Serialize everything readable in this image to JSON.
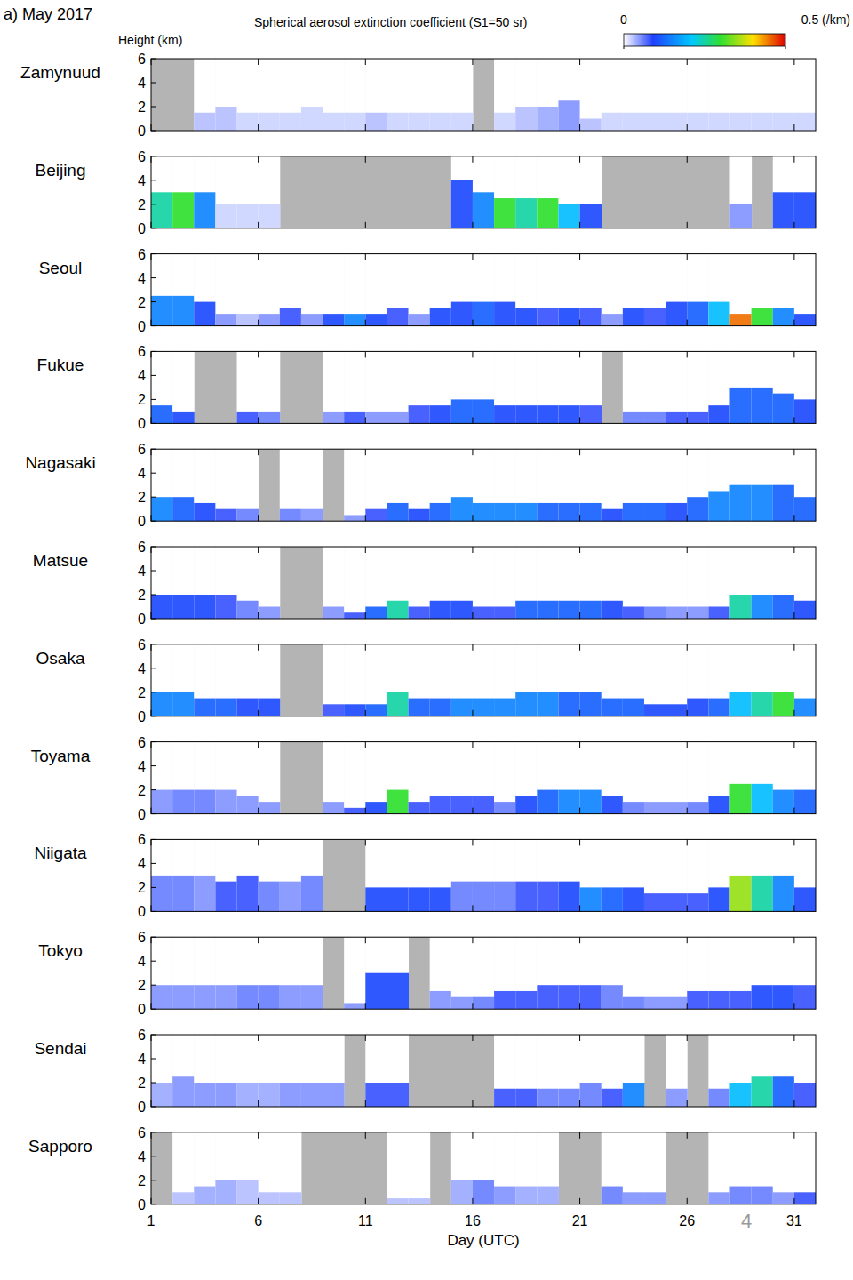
{
  "chart_data": {
    "type": "heatmap",
    "title": "a) May 2017",
    "colorbar": {
      "label": "Spherical aerosol extinction coefficient (S1=50 sr)",
      "range": [
        0,
        0.5
      ],
      "ticks": [
        0,
        {
          "value": 0.5,
          "label": "0.5 (/km)"
        }
      ]
    },
    "xlabel": "Day (UTC)",
    "ylabel": "Height (km)",
    "page_number": "4",
    "xlim": [
      1,
      32
    ],
    "xticks": [
      1,
      6,
      11,
      16,
      21,
      26,
      31
    ],
    "ylim": [
      0,
      6
    ],
    "yticks": [
      0,
      2,
      4,
      6
    ],
    "x": [
      1,
      2,
      3,
      4,
      5,
      6,
      7,
      8,
      9,
      10,
      11,
      12,
      13,
      14,
      15,
      16,
      17,
      18,
      19,
      20,
      21,
      22,
      23,
      24,
      25,
      26,
      27,
      28,
      29,
      30,
      31
    ],
    "panels": [
      {
        "name": "Zamynuud",
        "layer_top": [
          null,
          null,
          1.5,
          2,
          1.5,
          1.5,
          1.5,
          2,
          1.5,
          1.5,
          1.5,
          1.5,
          1.5,
          1.5,
          1.5,
          null,
          1.5,
          2,
          2,
          2.5,
          1,
          1.5,
          1.5,
          1.5,
          1.5,
          1.5,
          1.5,
          1.5,
          1.5,
          1.5,
          1.5
        ],
        "extinction": [
          null,
          null,
          0.03,
          0.03,
          0.02,
          0.02,
          0.02,
          0.02,
          0.02,
          0.02,
          0.03,
          0.02,
          0.02,
          0.02,
          0.02,
          null,
          0.02,
          0.03,
          0.04,
          0.05,
          0.03,
          0.02,
          0.02,
          0.02,
          0.02,
          0.02,
          0.02,
          0.02,
          0.02,
          0.02,
          0.02
        ]
      },
      {
        "name": "Beijing",
        "layer_top": [
          3,
          3,
          3,
          2,
          2,
          2,
          null,
          null,
          null,
          null,
          null,
          null,
          null,
          null,
          4,
          3,
          2.5,
          2.5,
          2.5,
          2,
          2,
          null,
          null,
          null,
          null,
          null,
          null,
          2,
          null,
          3,
          3
        ],
        "extinction": [
          0.25,
          0.3,
          0.15,
          0.02,
          0.02,
          0.02,
          null,
          null,
          null,
          null,
          null,
          null,
          null,
          null,
          0.1,
          0.15,
          0.3,
          0.25,
          0.3,
          0.2,
          0.1,
          null,
          null,
          null,
          null,
          null,
          null,
          0.05,
          null,
          0.1,
          0.1
        ]
      },
      {
        "name": "Seoul",
        "layer_top": [
          2.5,
          2.5,
          2,
          1,
          1,
          1,
          1.5,
          1,
          1,
          1,
          1,
          1.5,
          1,
          1.5,
          2,
          2,
          2,
          1.5,
          1.5,
          1.5,
          1.5,
          1,
          1.5,
          1.5,
          2,
          2,
          2,
          1,
          1.5,
          1.5,
          1
        ],
        "extinction": [
          0.15,
          0.15,
          0.1,
          0.05,
          0.03,
          0.05,
          0.08,
          0.05,
          0.1,
          0.15,
          0.1,
          0.08,
          0.05,
          0.1,
          0.1,
          0.12,
          0.1,
          0.1,
          0.08,
          0.1,
          0.08,
          0.05,
          0.1,
          0.08,
          0.1,
          0.12,
          0.2,
          0.45,
          0.3,
          0.15,
          0.1
        ]
      },
      {
        "name": "Fukue",
        "layer_top": [
          1.5,
          1,
          null,
          null,
          1,
          1,
          null,
          null,
          1,
          1,
          1,
          1,
          1.5,
          1.5,
          2,
          2,
          1.5,
          1.5,
          1.5,
          1.5,
          1.5,
          null,
          1,
          1,
          1,
          1,
          1.5,
          3,
          3,
          2.5,
          2
        ],
        "extinction": [
          0.12,
          0.1,
          null,
          null,
          0.08,
          0.06,
          null,
          null,
          0.05,
          0.08,
          0.05,
          0.05,
          0.08,
          0.1,
          0.12,
          0.12,
          0.1,
          0.1,
          0.1,
          0.1,
          0.08,
          null,
          0.06,
          0.06,
          0.08,
          0.08,
          0.1,
          0.12,
          0.12,
          0.12,
          0.1
        ]
      },
      {
        "name": "Nagasaki",
        "layer_top": [
          2,
          2,
          1.5,
          1,
          1,
          null,
          1,
          1,
          null,
          0.5,
          1,
          1.5,
          1,
          1.5,
          2,
          1.5,
          1.5,
          1.5,
          1.5,
          1.5,
          1.5,
          1,
          1.5,
          1.5,
          1.5,
          2,
          2.5,
          3,
          3,
          3,
          2
        ],
        "extinction": [
          0.15,
          0.12,
          0.1,
          0.08,
          0.06,
          null,
          0.06,
          0.05,
          null,
          0.05,
          0.08,
          0.12,
          0.1,
          0.12,
          0.15,
          0.15,
          0.15,
          0.15,
          0.12,
          0.12,
          0.12,
          0.1,
          0.12,
          0.12,
          0.1,
          0.12,
          0.15,
          0.15,
          0.15,
          0.12,
          0.12
        ]
      },
      {
        "name": "Matsue",
        "layer_top": [
          2,
          2,
          2,
          2,
          1.5,
          1,
          null,
          null,
          1,
          0.5,
          1,
          1.5,
          1,
          1.5,
          1.5,
          1,
          1,
          1.5,
          1.5,
          1.5,
          1.5,
          1.5,
          1,
          1,
          1,
          1,
          1,
          2,
          2,
          2,
          1.5
        ],
        "extinction": [
          0.1,
          0.1,
          0.1,
          0.08,
          0.06,
          0.05,
          null,
          null,
          0.05,
          0.08,
          0.12,
          0.25,
          0.08,
          0.1,
          0.1,
          0.08,
          0.08,
          0.12,
          0.12,
          0.12,
          0.12,
          0.1,
          0.08,
          0.06,
          0.05,
          0.05,
          0.08,
          0.25,
          0.15,
          0.12,
          0.1
        ]
      },
      {
        "name": "Osaka",
        "layer_top": [
          2,
          2,
          1.5,
          1.5,
          1.5,
          1.5,
          null,
          null,
          1,
          1,
          1,
          2,
          1.5,
          1.5,
          1.5,
          1.5,
          1.5,
          2,
          2,
          2,
          2,
          1.5,
          1.5,
          1,
          1,
          1.5,
          1.5,
          2,
          2,
          2,
          1.5
        ],
        "extinction": [
          0.15,
          0.15,
          0.12,
          0.12,
          0.1,
          0.1,
          null,
          null,
          0.08,
          0.1,
          0.12,
          0.25,
          0.12,
          0.12,
          0.15,
          0.15,
          0.15,
          0.15,
          0.15,
          0.12,
          0.12,
          0.12,
          0.12,
          0.1,
          0.1,
          0.1,
          0.12,
          0.2,
          0.25,
          0.3,
          0.15
        ]
      },
      {
        "name": "Toyama",
        "layer_top": [
          2,
          2,
          2,
          2,
          1.5,
          1,
          null,
          null,
          1,
          0.5,
          1,
          2,
          1,
          1.5,
          1.5,
          1.5,
          1,
          1.5,
          2,
          2,
          2,
          1.5,
          1,
          1,
          1,
          1,
          1.5,
          2.5,
          2.5,
          2,
          2
        ],
        "extinction": [
          0.05,
          0.06,
          0.06,
          0.05,
          0.05,
          0.05,
          null,
          null,
          0.05,
          0.08,
          0.1,
          0.3,
          0.08,
          0.08,
          0.08,
          0.08,
          0.06,
          0.1,
          0.12,
          0.15,
          0.15,
          0.1,
          0.06,
          0.05,
          0.05,
          0.06,
          0.1,
          0.3,
          0.2,
          0.15,
          0.12
        ]
      },
      {
        "name": "Niigata",
        "layer_top": [
          3,
          3,
          3,
          2.5,
          3,
          2.5,
          2.5,
          3,
          null,
          null,
          2,
          2,
          2,
          2,
          2.5,
          2.5,
          2.5,
          2.5,
          2.5,
          2.5,
          2,
          2,
          2,
          1.5,
          1.5,
          1.5,
          2,
          3,
          3,
          3,
          2
        ],
        "extinction": [
          0.06,
          0.06,
          0.05,
          0.08,
          0.08,
          0.06,
          0.05,
          0.06,
          null,
          null,
          0.1,
          0.1,
          0.1,
          0.1,
          0.06,
          0.06,
          0.06,
          0.08,
          0.08,
          0.1,
          0.15,
          0.12,
          0.1,
          0.08,
          0.08,
          0.08,
          0.1,
          0.35,
          0.25,
          0.15,
          0.1
        ]
      },
      {
        "name": "Tokyo",
        "layer_top": [
          2,
          2,
          2,
          2,
          2,
          2,
          2,
          2,
          null,
          0.5,
          3,
          3,
          null,
          1.5,
          1,
          1,
          1.5,
          1.5,
          2,
          2,
          2,
          2,
          1,
          1,
          1,
          1.5,
          1.5,
          1.5,
          2,
          2,
          2
        ],
        "extinction": [
          0.05,
          0.05,
          0.05,
          0.05,
          0.06,
          0.06,
          0.05,
          0.05,
          null,
          0.05,
          0.1,
          0.1,
          null,
          0.05,
          0.05,
          0.06,
          0.08,
          0.08,
          0.08,
          0.08,
          0.08,
          0.06,
          0.06,
          0.05,
          0.05,
          0.08,
          0.08,
          0.08,
          0.1,
          0.1,
          0.08
        ]
      },
      {
        "name": "Sendai",
        "layer_top": [
          2,
          2.5,
          2,
          2,
          2,
          2,
          2,
          2,
          2,
          null,
          2,
          2,
          null,
          null,
          null,
          null,
          1.5,
          1.5,
          1.5,
          1.5,
          2,
          1.5,
          2,
          null,
          1.5,
          null,
          1.5,
          2,
          2.5,
          2.5,
          2
        ],
        "extinction": [
          0.04,
          0.05,
          0.05,
          0.05,
          0.04,
          0.04,
          0.05,
          0.05,
          0.05,
          null,
          0.08,
          0.08,
          null,
          null,
          null,
          null,
          0.08,
          0.08,
          0.06,
          0.06,
          0.06,
          0.08,
          0.15,
          null,
          0.05,
          null,
          0.06,
          0.2,
          0.25,
          0.12,
          0.08
        ]
      },
      {
        "name": "Sapporo",
        "layer_top": [
          null,
          1,
          1.5,
          2,
          2,
          1,
          1,
          null,
          null,
          null,
          null,
          0.5,
          0.5,
          null,
          2,
          2,
          1.5,
          1.5,
          1.5,
          null,
          null,
          1.5,
          1,
          1,
          null,
          null,
          1,
          1.5,
          1.5,
          1,
          1
        ],
        "extinction": [
          null,
          0.03,
          0.04,
          0.04,
          0.03,
          0.03,
          0.03,
          null,
          null,
          null,
          null,
          0.03,
          0.03,
          null,
          0.04,
          0.06,
          0.05,
          0.04,
          0.04,
          null,
          null,
          0.06,
          0.05,
          0.05,
          null,
          null,
          0.05,
          0.06,
          0.06,
          0.05,
          0.08
        ]
      }
    ]
  }
}
